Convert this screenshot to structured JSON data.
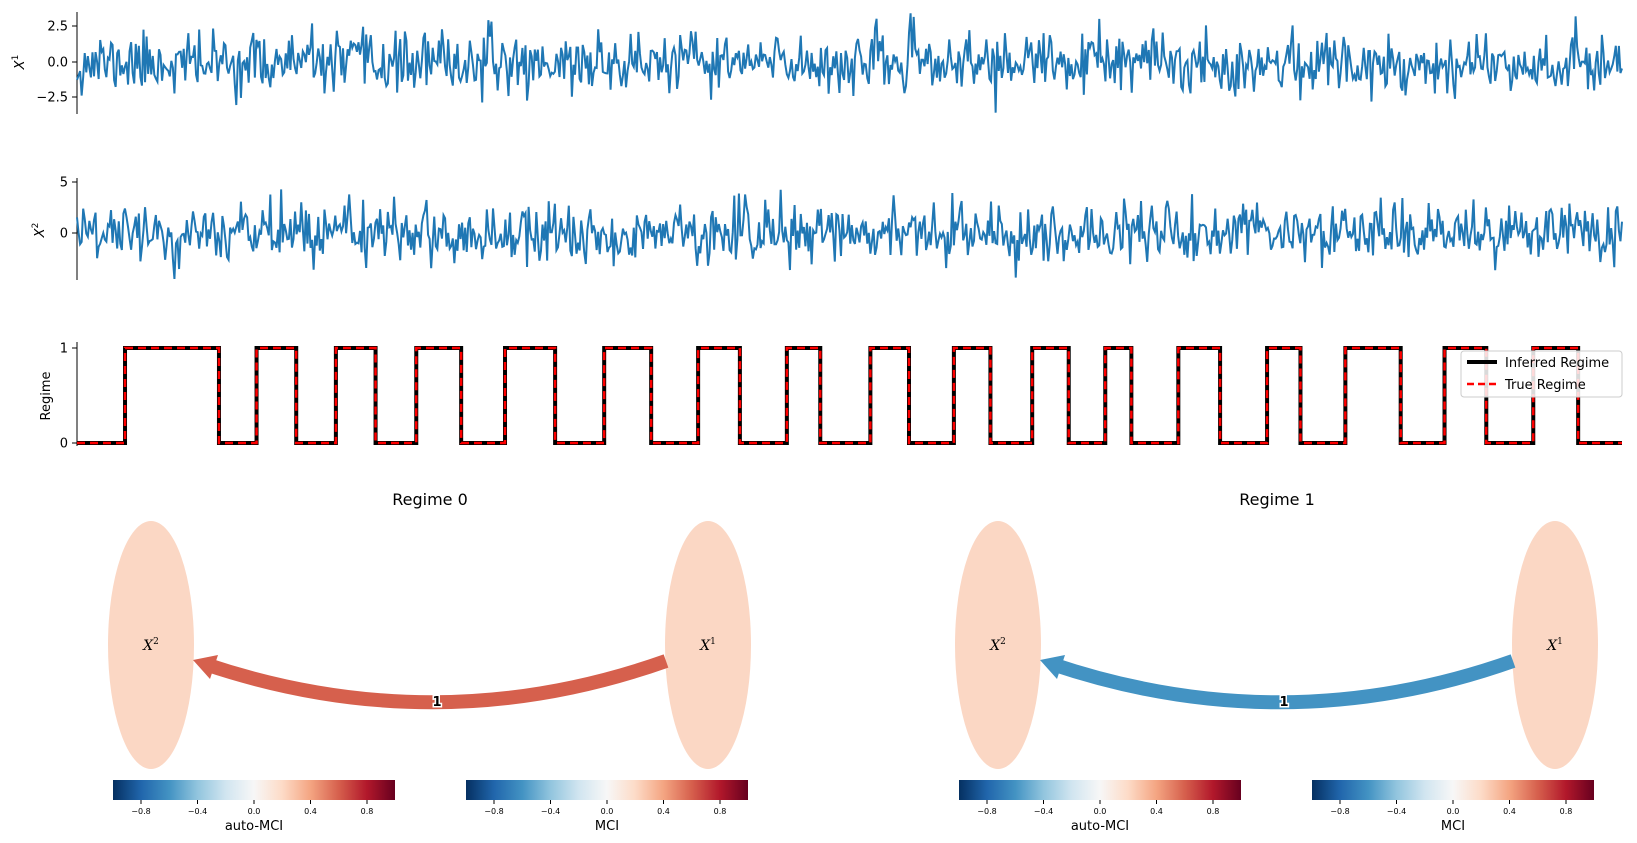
{
  "chart_data": [
    {
      "type": "line",
      "title": "",
      "ylabel": "X",
      "ylabel_sup": "1",
      "yticks": [
        "2.5",
        "0.0",
        "−2.5"
      ],
      "ytick_values": [
        2.5,
        0.0,
        -2.5
      ],
      "ylim": [
        -3.8,
        3.8
      ],
      "n_points": 1000,
      "series": [
        {
          "color": "#1f77b4",
          "std": 1.1,
          "seed": 11
        }
      ]
    },
    {
      "type": "line",
      "title": "",
      "ylabel": "X",
      "ylabel_sup": "2",
      "yticks": [
        "5",
        "0"
      ],
      "ytick_values": [
        5,
        0
      ],
      "ylim": [
        -4.5,
        5.2
      ],
      "n_points": 1000,
      "series": [
        {
          "color": "#1f77b4",
          "std": 1.4,
          "seed": 29
        }
      ]
    },
    {
      "type": "line",
      "title": "",
      "ylabel": "Regime",
      "yticks": [
        "1",
        "0"
      ],
      "ytick_values": [
        1,
        0
      ],
      "ylim": [
        -0.1,
        1.1
      ],
      "transitions": [
        46,
        136,
        172,
        210,
        248,
        286,
        325,
        368,
        410,
        458,
        505,
        550,
        595,
        635,
        680,
        712,
        760,
        797,
        840,
        875,
        915,
        950,
        985,
        1010,
        1055,
        1095,
        1140,
        1172,
        1215,
        1268,
        1310,
        1350,
        1395,
        1438
      ],
      "x_end": 1480,
      "series": [
        {
          "name": "Inferred Regime",
          "color": "#000000",
          "style": "solid"
        },
        {
          "name": "True Regime",
          "color": "#ff0000",
          "style": "dashed"
        }
      ],
      "legend": "top-right"
    }
  ],
  "graphs": [
    {
      "title": "Regime 0",
      "nodes": [
        {
          "id": "X2",
          "label": "X",
          "sup": "2",
          "color": "#fbd7c4"
        },
        {
          "id": "X1",
          "label": "X",
          "sup": "1",
          "color": "#fbd7c4"
        }
      ],
      "edge": {
        "from": "X1",
        "to": "X2",
        "lag_label": "1",
        "color": "#d6604d"
      },
      "colorbars": [
        {
          "label": "auto-MCI",
          "ticks": [
            "−0.8",
            "−0.4",
            "0.0",
            "0.4",
            "0.8"
          ]
        },
        {
          "label": "MCI",
          "ticks": [
            "−0.8",
            "−0.4",
            "0.0",
            "0.4",
            "0.8"
          ]
        }
      ]
    },
    {
      "title": "Regime 1",
      "nodes": [
        {
          "id": "X2",
          "label": "X",
          "sup": "2",
          "color": "#fbd7c4"
        },
        {
          "id": "X1",
          "label": "X",
          "sup": "1",
          "color": "#fbd7c4"
        }
      ],
      "edge": {
        "from": "X1",
        "to": "X2",
        "lag_label": "1",
        "color": "#4393c3"
      },
      "colorbars": [
        {
          "label": "auto-MCI",
          "ticks": [
            "−0.8",
            "−0.4",
            "0.0",
            "0.4",
            "0.8"
          ]
        },
        {
          "label": "MCI",
          "ticks": [
            "−0.8",
            "−0.4",
            "0.0",
            "0.4",
            "0.8"
          ]
        }
      ]
    }
  ],
  "colormap": {
    "name": "RdBu_r",
    "stops": [
      "#053061",
      "#2166ac",
      "#4393c3",
      "#92c5de",
      "#d1e5f0",
      "#f7f7f7",
      "#fddbc7",
      "#f4a582",
      "#d6604d",
      "#b2182b",
      "#67001f"
    ]
  }
}
